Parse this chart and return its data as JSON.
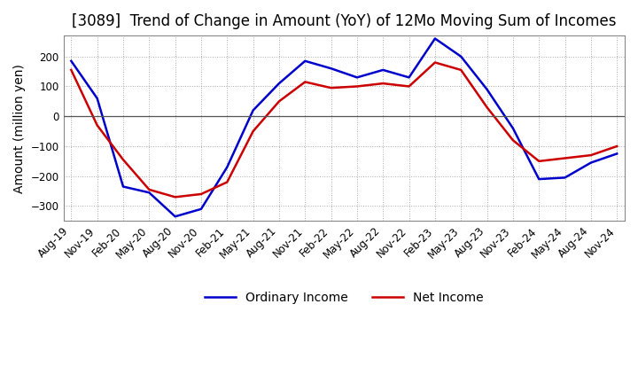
{
  "title": "[3089]  Trend of Change in Amount (YoY) of 12Mo Moving Sum of Incomes",
  "ylabel": "Amount (million yen)",
  "ylim": [
    -350,
    270
  ],
  "yticks": [
    -300,
    -200,
    -100,
    0,
    100,
    200
  ],
  "x_labels": [
    "Aug-19",
    "Nov-19",
    "Feb-20",
    "May-20",
    "Aug-20",
    "Nov-20",
    "Feb-21",
    "May-21",
    "Aug-21",
    "Nov-21",
    "Feb-22",
    "May-22",
    "Aug-22",
    "Nov-22",
    "Feb-23",
    "May-23",
    "Aug-23",
    "Nov-23",
    "Feb-24",
    "May-24",
    "Aug-24",
    "Nov-24"
  ],
  "ordinary_income": [
    185,
    60,
    -235,
    -255,
    -335,
    -310,
    -170,
    20,
    110,
    185,
    160,
    130,
    155,
    130,
    260,
    200,
    90,
    -40,
    -210,
    -205,
    -155,
    -125
  ],
  "net_income": [
    155,
    -30,
    -145,
    -245,
    -270,
    -260,
    -220,
    -50,
    50,
    115,
    95,
    100,
    110,
    100,
    180,
    155,
    30,
    -80,
    -150,
    -140,
    -130,
    -100
  ],
  "ordinary_color": "#0000cc",
  "net_color": "#cc0000",
  "background_color": "#ffffff",
  "grid_color": "#aaaaaa",
  "title_fontsize": 12,
  "label_fontsize": 10,
  "tick_fontsize": 8.5,
  "legend_fontsize": 10
}
